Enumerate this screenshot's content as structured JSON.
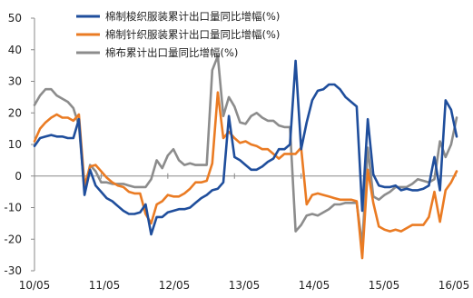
{
  "chart_data": {
    "type": "line",
    "title": "",
    "xlabel": "",
    "ylabel": "",
    "ylim": [
      -30,
      50
    ],
    "y_ticks": [
      50,
      40,
      30,
      20,
      10,
      0,
      -10,
      -20,
      -30
    ],
    "x_ticks": [
      "10/05",
      "11/05",
      "12/05",
      "13/05",
      "14/05",
      "15/05",
      "16/05"
    ],
    "grid": false,
    "legend_position": "top-center",
    "series": [
      {
        "name": "棉制梭织服装累计出口量同比增幅(%)",
        "color": "#1f4e9c",
        "values": [
          9.5,
          12,
          12.5,
          13,
          12.5,
          12.5,
          12,
          12,
          18,
          -6,
          2,
          -3,
          -5,
          -7,
          -8,
          -9.5,
          -11,
          -12,
          -12,
          -11.5,
          -9,
          -18.5,
          -13,
          -13,
          -11.5,
          -11,
          -10.5,
          -10.5,
          -10,
          -8.5,
          -7,
          -6,
          -4.5,
          -4,
          -2,
          19,
          6,
          5,
          3.5,
          2,
          2,
          3,
          4.5,
          5.5,
          8.5,
          8.5,
          10,
          36.5,
          8.5,
          17,
          24,
          27,
          27.5,
          29,
          29,
          27.5,
          25,
          23.5,
          22,
          -11,
          18,
          0.5,
          -3,
          -3.5,
          -3.5,
          -3,
          -4.5,
          -4,
          -4.5,
          -4.5,
          -4,
          -3,
          6,
          -4.5,
          24,
          21,
          12.5
        ]
      },
      {
        "name": "棉制针织服装累计出口量同比增幅(%)",
        "color": "#ea7b23",
        "values": [
          11,
          15,
          17,
          18.5,
          19.5,
          18.5,
          18.5,
          17.5,
          19.5,
          -3,
          3,
          3.5,
          1.5,
          -0.5,
          -2,
          -3,
          -3.5,
          -5,
          -5.5,
          -5.5,
          -12,
          -15,
          -9,
          -8,
          -6,
          -6.5,
          -6.5,
          -5.5,
          -4,
          -2,
          -2,
          -1.5,
          4,
          26.5,
          12,
          14,
          12,
          10.5,
          11,
          10,
          9.5,
          8.5,
          8.5,
          7,
          5.5,
          7,
          7,
          7,
          9,
          -9,
          -6,
          -5.5,
          -6,
          -6.5,
          -7,
          -7.5,
          -7.5,
          -7.5,
          -8,
          -26,
          2,
          -8.5,
          -16,
          -17,
          -17.5,
          -17,
          -17.5,
          -16.5,
          -15.5,
          -15.5,
          -15.5,
          -13,
          -5,
          -14.5,
          -4.5,
          -2,
          1.5
        ]
      },
      {
        "name": "棉布累计出口量同比增幅(%)",
        "color": "#8c8c8c",
        "values": [
          22.5,
          25.5,
          27.5,
          27.5,
          25.5,
          24.5,
          23.5,
          21.5,
          16,
          -4.5,
          3.5,
          1.5,
          -2,
          -2,
          -2.5,
          -2.5,
          -2.5,
          -3,
          -3.5,
          -3.5,
          -3.5,
          -1,
          5,
          2.5,
          6.5,
          8.5,
          5,
          3.5,
          4,
          3.5,
          3.5,
          3.5,
          33.5,
          38,
          19,
          25,
          22,
          17,
          16.5,
          19,
          20,
          18.5,
          17.5,
          17.5,
          16,
          15.5,
          15.5,
          -17.5,
          -15.5,
          -12.5,
          -12,
          -12.5,
          -11.5,
          -10.5,
          -9,
          -9,
          -8.5,
          -8.5,
          -8.5,
          -22,
          9,
          -6.5,
          -7.5,
          -6,
          -5,
          -3.5,
          -3.5,
          -3.5,
          -2.5,
          -1,
          -1.5,
          -2,
          -1,
          11,
          6,
          10,
          18.5
        ]
      }
    ]
  }
}
